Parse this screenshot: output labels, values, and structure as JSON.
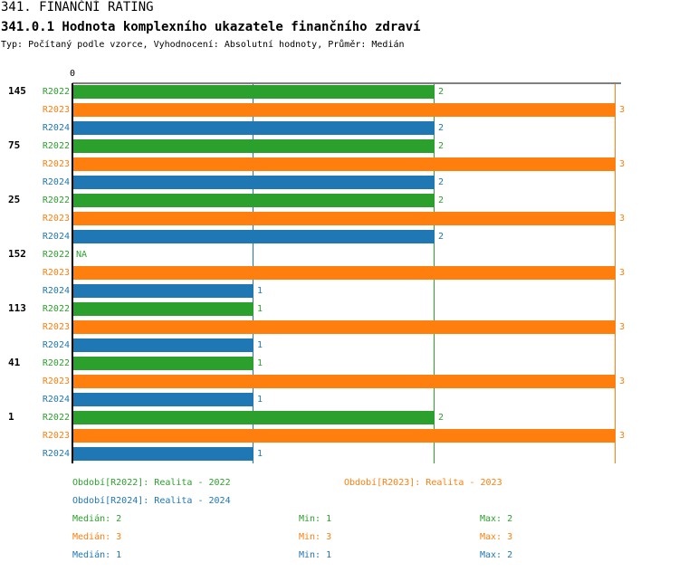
{
  "header": {
    "title": "341. FINANČNÍ RATING",
    "subtitle": "341.0.1 Hodnota komplexního ukazatele finančního zdraví",
    "meta": "Typ: Počítaný podle vzorce, Vyhodnocení: Absolutní hodnoty, Průměr: Medián"
  },
  "colors": {
    "R2022": "#2ca02c",
    "R2023": "#ff7f0e",
    "R2024": "#1f77b4",
    "axis": "#000000"
  },
  "chart_data": {
    "type": "bar",
    "orientation": "horizontal",
    "xlim": [
      0,
      3
    ],
    "axis_zero_label": "0",
    "series_names": [
      "R2022",
      "R2023",
      "R2024"
    ],
    "groups": [
      {
        "label": "145",
        "values": [
          2,
          3,
          2
        ],
        "value_labels": [
          "2",
          "3",
          "2"
        ]
      },
      {
        "label": "75",
        "values": [
          2,
          3,
          2
        ],
        "value_labels": [
          "2",
          "3",
          "2"
        ]
      },
      {
        "label": "25",
        "values": [
          2,
          3,
          2
        ],
        "value_labels": [
          "2",
          "3",
          "2"
        ]
      },
      {
        "label": "152",
        "values": [
          null,
          3,
          1
        ],
        "value_labels": [
          "NA",
          "3",
          "1"
        ]
      },
      {
        "label": "113",
        "values": [
          1,
          3,
          1
        ],
        "value_labels": [
          "1",
          "3",
          "1"
        ]
      },
      {
        "label": "41",
        "values": [
          1,
          3,
          1
        ],
        "value_labels": [
          "1",
          "3",
          "1"
        ]
      },
      {
        "label": "1",
        "values": [
          2,
          3,
          1
        ],
        "value_labels": [
          "2",
          "3",
          "1"
        ]
      }
    ],
    "reference_lines": [
      {
        "series": "R2022",
        "stat": "median",
        "value": 2
      },
      {
        "series": "R2023",
        "stat": "median",
        "value": 3
      },
      {
        "series": "R2024",
        "stat": "median",
        "value": 1
      }
    ]
  },
  "legend": {
    "periods": [
      "Období[R2022]: Realita - 2022",
      "Období[R2023]: Realita - 2023",
      "Období[R2024]: Realita - 2024"
    ],
    "stats": [
      {
        "median": "Medián: 2",
        "min": "Min: 1",
        "max": "Max: 2"
      },
      {
        "median": "Medián: 3",
        "min": "Min: 3",
        "max": "Max: 3"
      },
      {
        "median": "Medián: 1",
        "min": "Min: 1",
        "max": "Max: 2"
      }
    ]
  }
}
